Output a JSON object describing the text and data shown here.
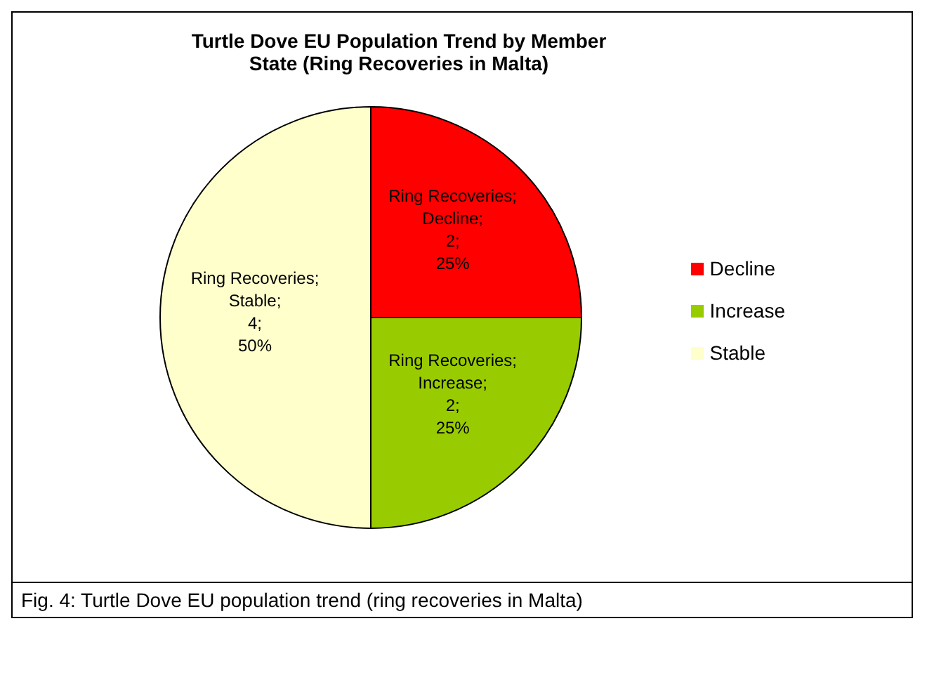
{
  "chart_data": {
    "type": "pie",
    "title": "Turtle Dove EU Population Trend by Member State (Ring Recoveries in Malta)",
    "categories": [
      "Decline",
      "Increase",
      "Stable"
    ],
    "values": [
      2,
      2,
      4
    ],
    "colors": [
      "#ff0000",
      "#99cc00",
      "#ffffcc"
    ],
    "value_labels": [
      "Ring Recoveries; Decline; 2; 25%",
      "Ring Recoveries; Increase; 2; 25%",
      "Ring Recoveries; Stable; 4; 50%"
    ],
    "legend": "right",
    "annotations": [
      "Fig. 4: Turtle Dove EU population trend (ring recoveries in Malta)"
    ]
  }
}
